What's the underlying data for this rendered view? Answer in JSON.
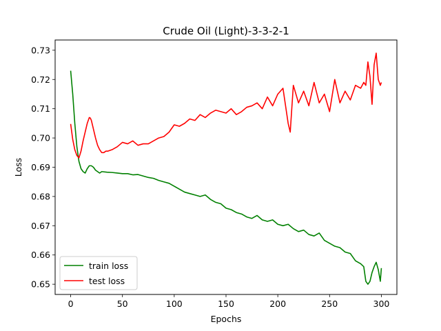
{
  "chart_data": {
    "type": "line",
    "title": "Crude Oil (Light)-3-3-2-1",
    "xlabel": "Epochs",
    "ylabel": "Loss",
    "xlim": [
      -15,
      315
    ],
    "ylim": [
      0.6465,
      0.7335
    ],
    "xticks": [
      0,
      50,
      100,
      150,
      200,
      250,
      300
    ],
    "yticks": [
      0.65,
      0.66,
      0.67,
      0.68,
      0.69,
      0.7,
      0.71,
      0.72,
      0.73
    ],
    "ytick_labels": [
      "0.65",
      "0.66",
      "0.67",
      "0.68",
      "0.69",
      "0.70",
      "0.71",
      "0.72",
      "0.73"
    ],
    "grid": false,
    "legend": "lower-left",
    "series": [
      {
        "name": "train loss",
        "color": "#008000",
        "x": [
          0,
          2,
          4,
          6,
          8,
          10,
          12,
          14,
          16,
          18,
          20,
          22,
          24,
          26,
          28,
          30,
          35,
          40,
          45,
          50,
          55,
          60,
          65,
          70,
          75,
          80,
          85,
          90,
          95,
          100,
          105,
          110,
          115,
          120,
          125,
          130,
          135,
          140,
          145,
          150,
          155,
          160,
          165,
          170,
          175,
          180,
          185,
          190,
          195,
          200,
          205,
          210,
          215,
          220,
          225,
          230,
          235,
          240,
          245,
          250,
          255,
          260,
          265,
          270,
          275,
          280,
          283,
          285,
          287,
          289,
          291,
          293,
          295,
          297,
          299,
          300
        ],
        "y": [
          0.723,
          0.715,
          0.705,
          0.697,
          0.692,
          0.6895,
          0.6885,
          0.688,
          0.6895,
          0.6905,
          0.6905,
          0.69,
          0.689,
          0.6885,
          0.688,
          0.6885,
          0.6883,
          0.6882,
          0.688,
          0.6878,
          0.6878,
          0.6874,
          0.6875,
          0.687,
          0.6865,
          0.6862,
          0.6855,
          0.685,
          0.6845,
          0.6835,
          0.6825,
          0.6815,
          0.681,
          0.6805,
          0.68,
          0.6805,
          0.679,
          0.678,
          0.6775,
          0.676,
          0.6755,
          0.6745,
          0.674,
          0.673,
          0.6725,
          0.6735,
          0.672,
          0.6715,
          0.672,
          0.6705,
          0.67,
          0.6705,
          0.669,
          0.668,
          0.6685,
          0.667,
          0.6665,
          0.6675,
          0.665,
          0.664,
          0.663,
          0.6625,
          0.661,
          0.6605,
          0.658,
          0.657,
          0.656,
          0.651,
          0.65,
          0.651,
          0.654,
          0.656,
          0.6575,
          0.655,
          0.651,
          0.6555
        ]
      },
      {
        "name": "test loss",
        "color": "#ff0000",
        "x": [
          0,
          2,
          4,
          6,
          8,
          10,
          12,
          14,
          16,
          18,
          19,
          20,
          22,
          24,
          26,
          28,
          30,
          32,
          34,
          36,
          40,
          45,
          50,
          55,
          60,
          65,
          70,
          75,
          80,
          85,
          90,
          95,
          100,
          105,
          110,
          115,
          120,
          125,
          130,
          135,
          140,
          145,
          150,
          155,
          160,
          165,
          170,
          175,
          180,
          185,
          190,
          195,
          200,
          205,
          210,
          212,
          215,
          220,
          225,
          230,
          235,
          240,
          245,
          250,
          255,
          260,
          265,
          270,
          275,
          280,
          283,
          285,
          287,
          289,
          291,
          293,
          295,
          297,
          299,
          300
        ],
        "y": [
          0.7048,
          0.6995,
          0.696,
          0.694,
          0.6932,
          0.6955,
          0.699,
          0.702,
          0.705,
          0.707,
          0.7068,
          0.706,
          0.703,
          0.7,
          0.6975,
          0.696,
          0.695,
          0.695,
          0.6955,
          0.6955,
          0.696,
          0.697,
          0.6985,
          0.698,
          0.699,
          0.6975,
          0.698,
          0.698,
          0.699,
          0.7,
          0.7005,
          0.702,
          0.7045,
          0.704,
          0.705,
          0.7065,
          0.706,
          0.708,
          0.707,
          0.7085,
          0.7095,
          0.709,
          0.7085,
          0.71,
          0.708,
          0.709,
          0.7105,
          0.711,
          0.712,
          0.71,
          0.714,
          0.711,
          0.715,
          0.717,
          0.705,
          0.702,
          0.718,
          0.712,
          0.716,
          0.711,
          0.719,
          0.712,
          0.715,
          0.709,
          0.72,
          0.712,
          0.716,
          0.713,
          0.718,
          0.717,
          0.719,
          0.718,
          0.726,
          0.721,
          0.7115,
          0.725,
          0.729,
          0.72,
          0.718,
          0.719
        ]
      }
    ]
  }
}
